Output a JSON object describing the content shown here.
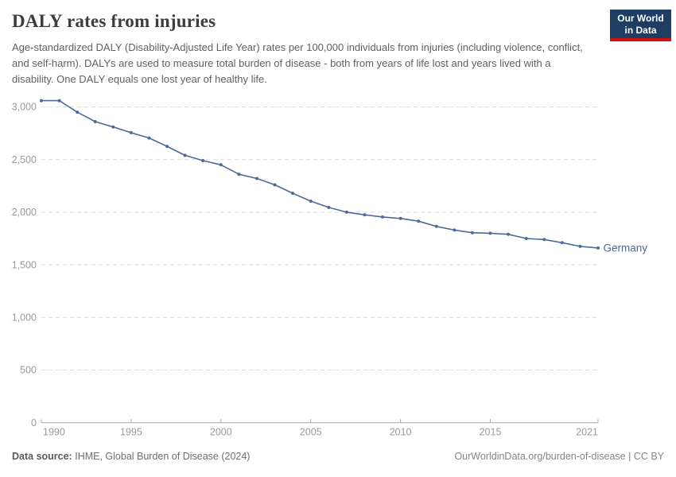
{
  "header": {
    "title": "DALY rates from injuries",
    "subtitle": "Age-standardized DALY (Disability-Adjusted Life Year) rates per 100,000 individuals from injuries (including violence, conflict, and self-harm). DALYs are used to measure total burden of disease - both from years of life lost and years lived with a disability. One DALY equals one lost year of healthy life.",
    "logo": {
      "line1": "Our World",
      "line2": "in Data",
      "bg_color": "#1d3d63",
      "accent_color": "#cf1110"
    }
  },
  "chart_data": {
    "type": "line",
    "title": "DALY rates from injuries",
    "xlabel": "",
    "ylabel": "",
    "xlim": [
      1990,
      2021
    ],
    "ylim": [
      0,
      3100
    ],
    "x_ticks": [
      1990,
      1995,
      2000,
      2005,
      2010,
      2015,
      2021
    ],
    "y_ticks": [
      0,
      500,
      1000,
      1500,
      2000,
      2500,
      3000
    ],
    "grid": "horizontal-dashed",
    "legend_position": "end-of-line-label",
    "series": [
      {
        "name": "Germany",
        "color": "#4c6a9c",
        "x": [
          1990,
          1991,
          1992,
          1993,
          1994,
          1995,
          1996,
          1997,
          1998,
          1999,
          2000,
          2001,
          2002,
          2003,
          2004,
          2005,
          2006,
          2007,
          2008,
          2009,
          2010,
          2011,
          2012,
          2013,
          2014,
          2015,
          2016,
          2017,
          2018,
          2019,
          2020,
          2021
        ],
        "values": [
          3060,
          3060,
          2950,
          2860,
          2810,
          2755,
          2705,
          2625,
          2540,
          2490,
          2450,
          2360,
          2320,
          2260,
          2180,
          2105,
          2045,
          2000,
          1975,
          1955,
          1940,
          1915,
          1865,
          1830,
          1805,
          1800,
          1790,
          1750,
          1740,
          1710,
          1675,
          1660
        ]
      }
    ]
  },
  "footer": {
    "source_label": "Data source:",
    "source_value": "IHME, Global Burden of Disease (2024)",
    "attribution": "OurWorldinData.org/burden-of-disease | CC BY"
  }
}
